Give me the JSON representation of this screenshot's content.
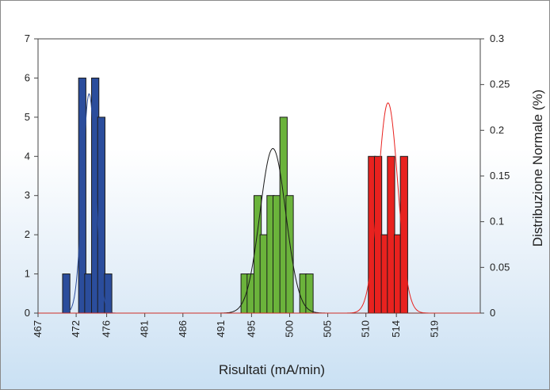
{
  "chart_data": {
    "type": "bar",
    "xlabel": "Risultati (mA/min)",
    "ylabel_right": "Distribuzione Normale (%)",
    "ylim_left": [
      0,
      7
    ],
    "ylim_right": [
      0,
      0.3
    ],
    "xlim": [
      467,
      525
    ],
    "x_ticks": [
      467,
      472,
      476,
      481,
      486,
      491,
      495,
      500,
      505,
      510,
      514,
      519
    ],
    "x_tick_labels": [
      "467",
      "472",
      "476",
      "481",
      "486",
      "491",
      "495",
      "500",
      "505",
      "510",
      "514",
      "519"
    ],
    "y_left_ticks": [
      0,
      1,
      2,
      3,
      4,
      5,
      6,
      7
    ],
    "y_left_tick_labels": [
      "0",
      "1",
      "2",
      "3",
      "4",
      "5",
      "6",
      "7"
    ],
    "y_right_ticks": [
      0,
      0.05,
      0.1,
      0.15,
      0.2,
      0.25,
      0.3
    ],
    "y_right_tick_labels": [
      "0",
      "0.05",
      "0.1",
      "0.15",
      "0.2",
      "0.25",
      "0.3"
    ],
    "bin_width": 0.96,
    "gridlines": false,
    "series": [
      {
        "color": "#2b4d9c",
        "curve_color": "#2b4d9c",
        "bins": [
          {
            "x": 470.7,
            "count": 1
          },
          {
            "x": 472.8,
            "count": 6
          },
          {
            "x": 473.6,
            "count": 1
          },
          {
            "x": 474.5,
            "count": 6
          },
          {
            "x": 475.3,
            "count": 5
          },
          {
            "x": 476.2,
            "count": 1
          }
        ],
        "normal": {
          "mean": 473.7,
          "sd": 0.85,
          "peak": 0.24
        }
      },
      {
        "color": "#6bb33b",
        "curve_color": "#1a1a1a",
        "bins": [
          {
            "x": 494.1,
            "count": 1
          },
          {
            "x": 494.9,
            "count": 1
          },
          {
            "x": 495.8,
            "count": 3
          },
          {
            "x": 496.6,
            "count": 2
          },
          {
            "x": 497.5,
            "count": 3
          },
          {
            "x": 498.3,
            "count": 3
          },
          {
            "x": 499.2,
            "count": 5
          },
          {
            "x": 500.0,
            "count": 3
          },
          {
            "x": 501.8,
            "count": 1
          },
          {
            "x": 502.6,
            "count": 1
          }
        ],
        "normal": {
          "mean": 497.8,
          "sd": 1.7,
          "peak": 0.18
        }
      },
      {
        "color": "#e8221f",
        "curve_color": "#e8221f",
        "bins": [
          {
            "x": 510.8,
            "count": 4
          },
          {
            "x": 511.6,
            "count": 4
          },
          {
            "x": 512.5,
            "count": 2
          },
          {
            "x": 513.3,
            "count": 4
          },
          {
            "x": 514.2,
            "count": 2
          },
          {
            "x": 515.0,
            "count": 4
          }
        ],
        "normal": {
          "mean": 512.9,
          "sd": 1.3,
          "peak": 0.23
        }
      }
    ]
  }
}
